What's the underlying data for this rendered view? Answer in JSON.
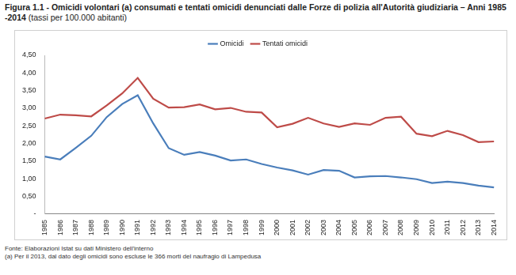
{
  "chart_data": {
    "type": "line",
    "title": "Figura 1.1 - Omicidi volontari (a) consumati e tentati omicidi denunciati dalle Forze di polizia all'Autorità giudiziaria – Anni 1985 -2014",
    "subtitle": "(tassi per 100.000 abitanti)",
    "notes": [
      "Fonte: Elaborazioni Istat su dati Ministero dell'interno",
      "(a) Per il 2013, dal dato degli omicidi sono escluse le 366 morti del naufragio di Lampedusa"
    ],
    "categories": [
      "1985",
      "1986",
      "1987",
      "1988",
      "1989",
      "1990",
      "1991",
      "1992",
      "1993",
      "1994",
      "1995",
      "1996",
      "1997",
      "1998",
      "1999",
      "2000",
      "2001",
      "2002",
      "2003",
      "2004",
      "2005",
      "2006",
      "2007",
      "2008",
      "2009",
      "2010",
      "2011",
      "2012",
      "2013",
      "2014"
    ],
    "series": [
      {
        "name": "Omicidi",
        "color": "#4a7ebb",
        "marker": "none",
        "line_style": "solid",
        "values": [
          1.63,
          1.55,
          1.88,
          2.22,
          2.75,
          3.12,
          3.37,
          2.57,
          1.87,
          1.68,
          1.76,
          1.66,
          1.52,
          1.55,
          1.42,
          1.32,
          1.24,
          1.12,
          1.25,
          1.23,
          1.04,
          1.07,
          1.08,
          1.04,
          0.99,
          0.88,
          0.92,
          0.88,
          0.81,
          0.76
        ]
      },
      {
        "name": "Tentati omicidi",
        "color": "#be4b48",
        "marker": "none",
        "line_style": "solid",
        "values": [
          2.71,
          2.82,
          2.8,
          2.77,
          3.08,
          3.42,
          3.86,
          3.27,
          3.02,
          3.03,
          3.11,
          2.97,
          3.01,
          2.9,
          2.88,
          2.46,
          2.56,
          2.73,
          2.57,
          2.47,
          2.57,
          2.53,
          2.73,
          2.76,
          2.28,
          2.21,
          2.36,
          2.24,
          2.04,
          2.06
        ]
      }
    ],
    "ylim": [
      0,
      4.5
    ],
    "yticks": [
      {
        "value": 0,
        "label": "-"
      },
      {
        "value": 0.5,
        "label": "0,50"
      },
      {
        "value": 1,
        "label": "1,00"
      },
      {
        "value": 1.5,
        "label": "1,50"
      },
      {
        "value": 2,
        "label": "2,00"
      },
      {
        "value": 2.5,
        "label": "2,50"
      },
      {
        "value": 3,
        "label": "3,00"
      },
      {
        "value": 3.5,
        "label": "3,50"
      },
      {
        "value": 4,
        "label": "4,00"
      },
      {
        "value": 4.5,
        "label": "4,50"
      }
    ],
    "grid": false,
    "legend": "top"
  }
}
